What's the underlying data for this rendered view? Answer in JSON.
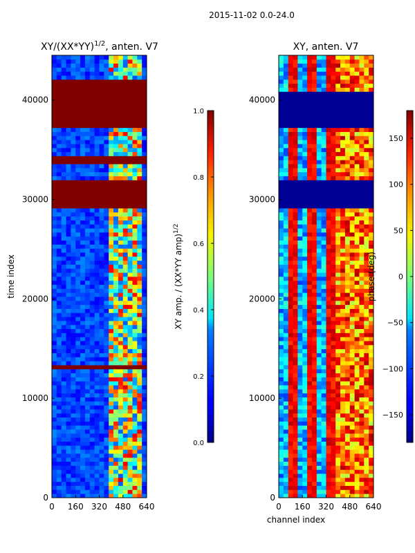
{
  "figure": {
    "suptitle": "2015-11-02 0.0-24.0"
  },
  "chart_data": [
    {
      "type": "heatmap",
      "title": "XY/(XX*YY)",
      "title_superscript": "1/2",
      "title_suffix": ", anten. V7",
      "xlabel": "",
      "ylabel": "time index",
      "xlim": [
        0,
        640
      ],
      "ylim": [
        0,
        44500
      ],
      "xticks": [
        0,
        160,
        320,
        480,
        640
      ],
      "yticks": [
        0,
        10000,
        20000,
        30000,
        40000
      ],
      "colorbar": {
        "label": "XY amp. / (XX*YY amp)",
        "label_superscript": "1/2",
        "range": [
          0.0,
          1.0
        ],
        "ticks": [
          "0.0",
          "0.2",
          "0.4",
          "0.6",
          "0.8",
          "1.0"
        ],
        "tick_values": [
          0.0,
          0.2,
          0.4,
          0.6,
          0.8,
          1.0
        ]
      },
      "saturated_bands": [
        [
          41000,
          42000
        ],
        [
          37300,
          40700
        ],
        [
          33700,
          34500
        ],
        [
          29300,
          31900
        ],
        [
          12900,
          13400
        ]
      ],
      "active_channel_range": [
        400,
        610
      ]
    },
    {
      "type": "heatmap",
      "title": "XY, anten. V7",
      "xlabel": "channel index",
      "ylabel": "",
      "xlim": [
        0,
        640
      ],
      "ylim": [
        0,
        44500
      ],
      "xticks": [
        0,
        160,
        320,
        480,
        640
      ],
      "yticks": [
        0,
        10000,
        20000,
        30000,
        40000
      ],
      "colorbar": {
        "label": "phase (deg)",
        "range": [
          -180,
          180
        ],
        "ticks": [
          "150",
          "100",
          "50",
          "0",
          "−50",
          "−100",
          "−150"
        ],
        "tick_values": [
          150,
          100,
          50,
          0,
          -50,
          -100,
          -150
        ]
      },
      "flagged_bands": [
        [
          37300,
          40700
        ],
        [
          29300,
          31900
        ]
      ],
      "active_channel_range": [
        400,
        640
      ]
    }
  ]
}
